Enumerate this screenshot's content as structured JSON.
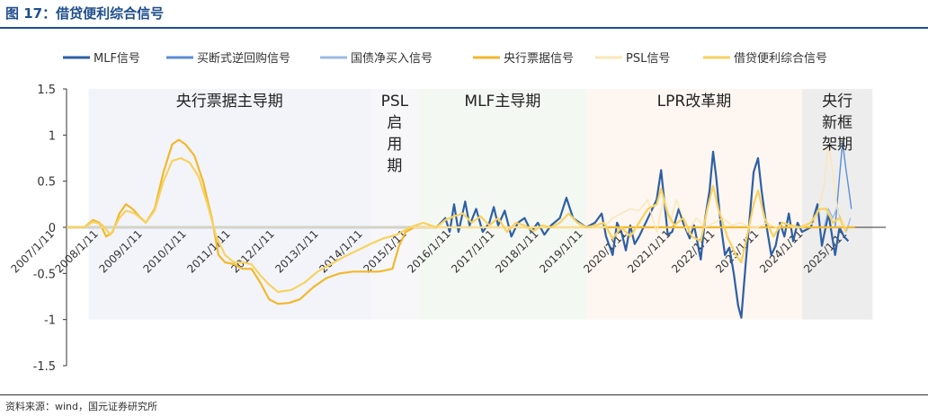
{
  "figure": {
    "title": "图 17：借贷便利综合信号",
    "source": "资料来源：wind，国元证券研究所"
  },
  "chart_data": {
    "type": "line",
    "title": "",
    "xlabel": "",
    "ylabel": "",
    "ylim": [
      -1.5,
      1.5
    ],
    "yticks": [
      "1.5",
      "1",
      "0.5",
      "0",
      "-0.5",
      "-1",
      "-1.5"
    ],
    "xlim": [
      2007.3,
      2025.9
    ],
    "xticks": [
      "2007/1/11",
      "2008/1/11",
      "2009/1/11",
      "2010/1/11",
      "2011/1/11",
      "2012/1/11",
      "2013/1/11",
      "2014/1/11",
      "2015/1/11",
      "2016/1/11",
      "2017/1/11",
      "2018/1/11",
      "2019/1/11",
      "2020/1/11",
      "2021/1/11",
      "2022/1/11",
      "2023/1/11",
      "2024/1/11",
      "2025/1/11"
    ],
    "legend_position": "top",
    "grid": false,
    "periods": [
      {
        "label": "央行票据主导期",
        "start": 2007.8,
        "end": 2014.2,
        "color": "#f3f4fa"
      },
      {
        "label": "PSL\n启\n用\n期",
        "start": 2014.2,
        "end": 2015.3,
        "color": "#f7f7fa"
      },
      {
        "label": "MLF主导期",
        "start": 2015.3,
        "end": 2019.1,
        "color": "#f4f8f2"
      },
      {
        "label": "LPR改革期",
        "start": 2019.1,
        "end": 2024.0,
        "color": "#fdf6f1"
      },
      {
        "label": "央行\n新框\n架期",
        "start": 2024.0,
        "end": 2025.6,
        "color": "#ededed"
      }
    ],
    "series": [
      {
        "name": "MLF信号",
        "color": "#2e5fa4",
        "width": 2.2,
        "points": [
          [
            2007.3,
            0
          ],
          [
            2015.7,
            0
          ],
          [
            2015.9,
            0.1
          ],
          [
            2016.0,
            -0.05
          ],
          [
            2016.1,
            0.25
          ],
          [
            2016.2,
            -0.05
          ],
          [
            2016.35,
            0.28
          ],
          [
            2016.45,
            0.02
          ],
          [
            2016.6,
            0.2
          ],
          [
            2016.75,
            -0.05
          ],
          [
            2016.9,
            0.05
          ],
          [
            2017.0,
            0.22
          ],
          [
            2017.1,
            0.02
          ],
          [
            2017.25,
            0.18
          ],
          [
            2017.4,
            -0.1
          ],
          [
            2017.55,
            0.05
          ],
          [
            2017.7,
            0.1
          ],
          [
            2017.85,
            -0.05
          ],
          [
            2018.0,
            0.05
          ],
          [
            2018.15,
            -0.08
          ],
          [
            2018.3,
            0.02
          ],
          [
            2018.5,
            0.1
          ],
          [
            2018.65,
            0.32
          ],
          [
            2018.8,
            0.1
          ],
          [
            2018.95,
            0.05
          ],
          [
            2019.1,
            0
          ],
          [
            2019.3,
            0.05
          ],
          [
            2019.45,
            0.15
          ],
          [
            2019.55,
            -0.1
          ],
          [
            2019.7,
            -0.3
          ],
          [
            2019.8,
            0.05
          ],
          [
            2019.9,
            -0.05
          ],
          [
            2020.0,
            -0.25
          ],
          [
            2020.1,
            0.02
          ],
          [
            2020.2,
            -0.18
          ],
          [
            2020.3,
            -0.1
          ],
          [
            2020.45,
            0.05
          ],
          [
            2020.6,
            0.2
          ],
          [
            2020.7,
            0.3
          ],
          [
            2020.8,
            0.62
          ],
          [
            2020.88,
            0.25
          ],
          [
            2020.95,
            -0.08
          ],
          [
            2021.05,
            -0.05
          ],
          [
            2021.2,
            0.2
          ],
          [
            2021.3,
            0.05
          ],
          [
            2021.45,
            -0.12
          ],
          [
            2021.55,
            0.02
          ],
          [
            2021.7,
            -0.35
          ],
          [
            2021.8,
            0.1
          ],
          [
            2021.9,
            0.4
          ],
          [
            2021.98,
            0.82
          ],
          [
            2022.05,
            0.55
          ],
          [
            2022.15,
            0.05
          ],
          [
            2022.25,
            -0.3
          ],
          [
            2022.35,
            -0.22
          ],
          [
            2022.45,
            -0.5
          ],
          [
            2022.55,
            -0.85
          ],
          [
            2022.62,
            -0.98
          ],
          [
            2022.72,
            -0.4
          ],
          [
            2022.82,
            0.15
          ],
          [
            2022.9,
            0.6
          ],
          [
            2023.0,
            0.75
          ],
          [
            2023.08,
            0.4
          ],
          [
            2023.18,
            0.05
          ],
          [
            2023.3,
            -0.3
          ],
          [
            2023.4,
            -0.2
          ],
          [
            2023.5,
            0.05
          ],
          [
            2023.6,
            -0.1
          ],
          [
            2023.7,
            0.15
          ],
          [
            2023.8,
            -0.15
          ],
          [
            2023.9,
            0.05
          ],
          [
            2024.0,
            -0.05
          ],
          [
            2024.2,
            0
          ],
          [
            2024.35,
            0.25
          ],
          [
            2024.45,
            -0.2
          ],
          [
            2024.6,
            0.15
          ],
          [
            2024.75,
            -0.3
          ],
          [
            2024.85,
            0
          ],
          [
            2024.95,
            -0.1
          ],
          [
            2025.05,
            -0.15
          ]
        ]
      },
      {
        "name": "买断式逆回购信号",
        "color": "#5b8ed6",
        "width": 1.4,
        "points": [
          [
            2007.3,
            0
          ],
          [
            2024.75,
            0
          ],
          [
            2024.85,
            0.55
          ],
          [
            2024.92,
            0.92
          ],
          [
            2025.0,
            0.62
          ],
          [
            2025.05,
            0.45
          ],
          [
            2025.12,
            0.2
          ]
        ]
      },
      {
        "name": "国债净买入信号",
        "color": "#9dbbe3",
        "width": 1.4,
        "points": [
          [
            2007.3,
            0
          ],
          [
            2024.5,
            0
          ],
          [
            2024.6,
            0.2
          ],
          [
            2024.7,
            0.1
          ],
          [
            2024.8,
            0.22
          ],
          [
            2024.9,
            0.05
          ],
          [
            2025.0,
            -0.05
          ],
          [
            2025.1,
            0.1
          ]
        ]
      },
      {
        "name": "央行票据信号",
        "color": "#f2b82c",
        "width": 2.2,
        "points": [
          [
            2007.3,
            0
          ],
          [
            2007.7,
            0
          ],
          [
            2007.9,
            0.08
          ],
          [
            2008.05,
            0.05
          ],
          [
            2008.2,
            -0.1
          ],
          [
            2008.35,
            -0.05
          ],
          [
            2008.5,
            0.15
          ],
          [
            2008.65,
            0.25
          ],
          [
            2008.8,
            0.2
          ],
          [
            2008.95,
            0.12
          ],
          [
            2009.1,
            0.05
          ],
          [
            2009.3,
            0.2
          ],
          [
            2009.5,
            0.6
          ],
          [
            2009.7,
            0.9
          ],
          [
            2009.85,
            0.95
          ],
          [
            2010.0,
            0.9
          ],
          [
            2010.2,
            0.78
          ],
          [
            2010.4,
            0.5
          ],
          [
            2010.6,
            0.1
          ],
          [
            2010.75,
            -0.3
          ],
          [
            2010.9,
            -0.38
          ],
          [
            2011.1,
            -0.4
          ],
          [
            2011.3,
            -0.45
          ],
          [
            2011.5,
            -0.45
          ],
          [
            2011.7,
            -0.6
          ],
          [
            2011.9,
            -0.78
          ],
          [
            2012.1,
            -0.83
          ],
          [
            2012.35,
            -0.82
          ],
          [
            2012.6,
            -0.78
          ],
          [
            2012.9,
            -0.65
          ],
          [
            2013.2,
            -0.55
          ],
          [
            2013.5,
            -0.5
          ],
          [
            2013.8,
            -0.48
          ],
          [
            2014.1,
            -0.48
          ],
          [
            2014.4,
            -0.48
          ],
          [
            2014.7,
            -0.45
          ],
          [
            2014.85,
            -0.2
          ],
          [
            2015.0,
            -0.05
          ],
          [
            2015.2,
            0
          ],
          [
            2025.2,
            0
          ]
        ]
      },
      {
        "name": "PSL信号",
        "color": "#fbe7b5",
        "width": 1.4,
        "points": [
          [
            2007.3,
            0
          ],
          [
            2019.5,
            0
          ],
          [
            2019.7,
            0.1
          ],
          [
            2019.9,
            0.15
          ],
          [
            2020.1,
            0.2
          ],
          [
            2020.3,
            0.18
          ],
          [
            2020.5,
            0.3
          ],
          [
            2020.6,
            0.1
          ],
          [
            2020.7,
            -0.05
          ],
          [
            2020.85,
            0.3
          ],
          [
            2021.0,
            0.05
          ],
          [
            2021.15,
            0.3
          ],
          [
            2021.3,
            0.1
          ],
          [
            2021.4,
            -0.05
          ],
          [
            2021.6,
            0.1
          ],
          [
            2021.8,
            0
          ],
          [
            2022.0,
            0.05
          ],
          [
            2022.2,
            0.1
          ],
          [
            2022.4,
            0.02
          ],
          [
            2022.6,
            0.05
          ],
          [
            2022.8,
            0
          ],
          [
            2023.0,
            0
          ],
          [
            2023.2,
            0.05
          ],
          [
            2023.4,
            0
          ],
          [
            2023.6,
            0.05
          ],
          [
            2023.8,
            0
          ],
          [
            2024.0,
            0
          ],
          [
            2024.3,
            0.05
          ],
          [
            2024.5,
            0.45
          ],
          [
            2024.6,
            0.9
          ],
          [
            2024.7,
            0.6
          ],
          [
            2024.8,
            0.2
          ],
          [
            2025.0,
            0
          ]
        ]
      },
      {
        "name": "借贷便利综合信号",
        "color": "#f7d260",
        "width": 2.2,
        "points": [
          [
            2007.3,
            0
          ],
          [
            2007.7,
            0
          ],
          [
            2007.9,
            0.06
          ],
          [
            2008.1,
            0.03
          ],
          [
            2008.3,
            -0.08
          ],
          [
            2008.5,
            0.1
          ],
          [
            2008.65,
            0.18
          ],
          [
            2008.85,
            0.15
          ],
          [
            2009.1,
            0.05
          ],
          [
            2009.3,
            0.18
          ],
          [
            2009.5,
            0.5
          ],
          [
            2009.7,
            0.72
          ],
          [
            2009.9,
            0.75
          ],
          [
            2010.1,
            0.7
          ],
          [
            2010.3,
            0.55
          ],
          [
            2010.5,
            0.25
          ],
          [
            2010.7,
            -0.1
          ],
          [
            2010.9,
            -0.3
          ],
          [
            2011.1,
            -0.38
          ],
          [
            2011.3,
            -0.38
          ],
          [
            2011.5,
            -0.4
          ],
          [
            2011.7,
            -0.52
          ],
          [
            2011.9,
            -0.62
          ],
          [
            2012.1,
            -0.7
          ],
          [
            2012.4,
            -0.68
          ],
          [
            2012.7,
            -0.6
          ],
          [
            2013.0,
            -0.48
          ],
          [
            2013.3,
            -0.4
          ],
          [
            2013.6,
            -0.32
          ],
          [
            2013.9,
            -0.25
          ],
          [
            2014.2,
            -0.18
          ],
          [
            2014.5,
            -0.12
          ],
          [
            2014.8,
            -0.08
          ],
          [
            2015.1,
            0
          ],
          [
            2015.4,
            0.05
          ],
          [
            2015.7,
            0
          ],
          [
            2015.9,
            0.08
          ],
          [
            2016.1,
            0.12
          ],
          [
            2016.3,
            0.15
          ],
          [
            2016.5,
            0.05
          ],
          [
            2016.7,
            0.12
          ],
          [
            2016.9,
            0.02
          ],
          [
            2017.1,
            0.1
          ],
          [
            2017.3,
            -0.05
          ],
          [
            2017.5,
            0.05
          ],
          [
            2017.7,
            0.02
          ],
          [
            2017.9,
            -0.04
          ],
          [
            2018.1,
            0.02
          ],
          [
            2018.3,
            0
          ],
          [
            2018.5,
            0.05
          ],
          [
            2018.7,
            0.15
          ],
          [
            2018.9,
            0.05
          ],
          [
            2019.1,
            0
          ],
          [
            2019.3,
            0.02
          ],
          [
            2019.5,
            0.05
          ],
          [
            2019.7,
            -0.12
          ],
          [
            2019.9,
            0
          ],
          [
            2020.1,
            -0.1
          ],
          [
            2020.3,
            0.05
          ],
          [
            2020.5,
            0.2
          ],
          [
            2020.7,
            0.25
          ],
          [
            2020.8,
            0.42
          ],
          [
            2020.95,
            0.15
          ],
          [
            2021.1,
            0.02
          ],
          [
            2021.3,
            0.1
          ],
          [
            2021.5,
            -0.1
          ],
          [
            2021.7,
            -0.15
          ],
          [
            2021.85,
            0.2
          ],
          [
            2021.98,
            0.45
          ],
          [
            2022.1,
            0.2
          ],
          [
            2022.3,
            -0.1
          ],
          [
            2022.5,
            -0.3
          ],
          [
            2022.62,
            -0.38
          ],
          [
            2022.75,
            -0.1
          ],
          [
            2022.9,
            0.25
          ],
          [
            2023.0,
            0.4
          ],
          [
            2023.15,
            0.1
          ],
          [
            2023.35,
            -0.1
          ],
          [
            2023.55,
            0.05
          ],
          [
            2023.75,
            0.02
          ],
          [
            2023.95,
            0
          ],
          [
            2024.2,
            0.05
          ],
          [
            2024.4,
            0.2
          ],
          [
            2024.55,
            0.2
          ],
          [
            2024.7,
            0.05
          ],
          [
            2024.85,
            0.1
          ],
          [
            2025.0,
            -0.05
          ]
        ]
      }
    ]
  }
}
